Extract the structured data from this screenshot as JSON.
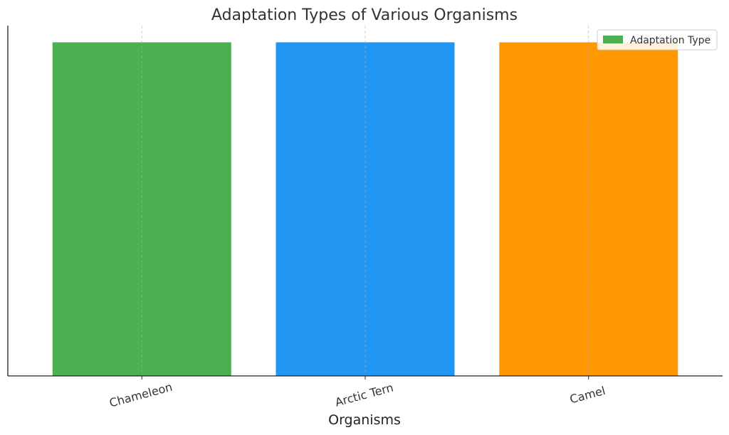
{
  "chart_data": {
    "type": "bar",
    "title": "Adaptation Types of Various Organisms",
    "xlabel": "Organisms",
    "ylabel": "",
    "categories": [
      "Chameleon",
      "Arctic Tern",
      "Camel"
    ],
    "series": [
      {
        "name": "Adaptation Type",
        "values": [
          1,
          1,
          1
        ],
        "colors": [
          "#4caf50",
          "#2196f3",
          "#ff9800"
        ]
      }
    ],
    "ylim": [
      0,
      1.05
    ],
    "grid": "vertical",
    "legend": "top-right",
    "yticks_visible": false
  }
}
